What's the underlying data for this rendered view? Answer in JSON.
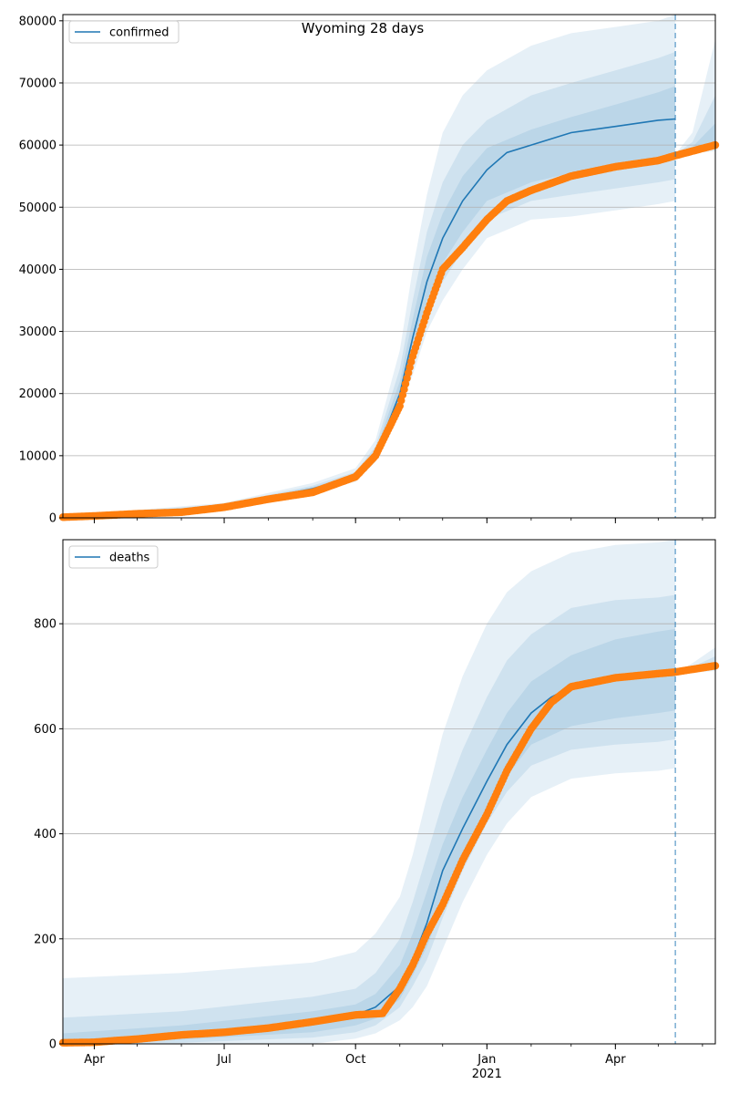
{
  "figure_title": "Wyoming 28 days",
  "colors": {
    "model": "#1f77b4",
    "observed": "#ff7f0e",
    "band": "#1f77b4",
    "grid": "#b0b0b0",
    "forecast_line": "#1f77b4"
  },
  "x_axis": {
    "start": "2020-03-10",
    "end": "2021-06-10",
    "forecast_start": "2021-05-13",
    "major_ticks": [
      {
        "date": "2020-04-01",
        "label": "Apr",
        "sublabel": ""
      },
      {
        "date": "2020-07-01",
        "label": "Jul",
        "sublabel": ""
      },
      {
        "date": "2020-10-01",
        "label": "Oct",
        "sublabel": ""
      },
      {
        "date": "2021-01-01",
        "label": "Jan",
        "sublabel": "2021"
      },
      {
        "date": "2021-04-01",
        "label": "Apr",
        "sublabel": ""
      }
    ]
  },
  "chart_data": [
    {
      "type": "line",
      "legend": "confirmed",
      "legend_position": "top-left",
      "grid": "horizontal",
      "ylim": [
        0,
        81000
      ],
      "yticks": [
        0,
        10000,
        20000,
        30000,
        40000,
        50000,
        60000,
        70000,
        80000
      ],
      "ytick_labels": [
        "0",
        "10000",
        "20000",
        "30000",
        "40000",
        "50000",
        "60000",
        "70000",
        "80000"
      ],
      "model": {
        "x": [
          "2020-03-10",
          "2020-04-01",
          "2020-05-01",
          "2020-06-01",
          "2020-07-01",
          "2020-08-01",
          "2020-09-01",
          "2020-10-01",
          "2020-10-15",
          "2020-11-01",
          "2020-11-10",
          "2020-11-20",
          "2020-12-01",
          "2020-12-15",
          "2021-01-01",
          "2021-01-15",
          "2021-02-01",
          "2021-03-01",
          "2021-04-01",
          "2021-05-01",
          "2021-05-13"
        ],
        "y": [
          100,
          350,
          800,
          1000,
          1900,
          3300,
          4700,
          6700,
          10000,
          20000,
          29000,
          38000,
          45000,
          51000,
          56000,
          58800,
          60000,
          62000,
          63000,
          64000,
          64200
        ]
      },
      "bands": [
        {
          "x": [
            "2020-03-10",
            "2020-07-01",
            "2020-09-01",
            "2020-10-01",
            "2020-10-15",
            "2020-11-01",
            "2020-11-10",
            "2020-11-20",
            "2020-12-01",
            "2020-12-15",
            "2021-01-01",
            "2021-02-01",
            "2021-03-01",
            "2021-04-01",
            "2021-05-01",
            "2021-05-13"
          ],
          "lower": [
            0,
            1500,
            4200,
            5800,
            9000,
            17500,
            23000,
            30000,
            35000,
            40000,
            45000,
            48000,
            48500,
            49500,
            50500,
            51000
          ],
          "upper": [
            300,
            2400,
            5600,
            8000,
            12500,
            27000,
            40000,
            52000,
            62000,
            68000,
            72000,
            76000,
            78000,
            79000,
            80000,
            81000
          ]
        },
        {
          "x": [
            "2020-03-10",
            "2020-07-01",
            "2020-09-01",
            "2020-10-01",
            "2020-10-15",
            "2020-11-01",
            "2020-11-10",
            "2020-11-20",
            "2020-12-01",
            "2020-12-15",
            "2021-01-01",
            "2021-02-01",
            "2021-03-01",
            "2021-04-01",
            "2021-05-01",
            "2021-05-13"
          ],
          "lower": [
            30,
            1600,
            4400,
            6200,
            9500,
            18500,
            25000,
            32000,
            38000,
            43000,
            48000,
            51000,
            52000,
            53000,
            54000,
            54500
          ],
          "upper": [
            200,
            2200,
            5200,
            7400,
            11500,
            24000,
            35000,
            46000,
            54000,
            60000,
            64000,
            68000,
            70000,
            72000,
            74000,
            75000
          ]
        },
        {
          "x": [
            "2020-03-10",
            "2020-07-01",
            "2020-09-01",
            "2020-10-01",
            "2020-10-15",
            "2020-11-01",
            "2020-11-10",
            "2020-11-20",
            "2020-12-01",
            "2020-12-15",
            "2021-01-01",
            "2021-02-01",
            "2021-03-01",
            "2021-04-01",
            "2021-05-01",
            "2021-05-13"
          ],
          "lower": [
            60,
            1750,
            4550,
            6450,
            9800,
            19300,
            27000,
            35000,
            41000,
            46000,
            51000,
            54000,
            55500,
            56500,
            57500,
            58000
          ],
          "upper": [
            150,
            2050,
            4950,
            7000,
            10800,
            22000,
            32000,
            42000,
            49000,
            55000,
            59500,
            62500,
            64500,
            66500,
            68500,
            69500
          ]
        }
      ],
      "forecast_bands": [
        {
          "x": [
            "2021-05-13",
            "2021-05-25",
            "2021-06-10"
          ],
          "lower": [
            58500,
            58700,
            59000
          ],
          "upper": [
            58500,
            62000,
            77000
          ]
        },
        {
          "x": [
            "2021-05-13",
            "2021-05-25",
            "2021-06-10"
          ],
          "lower": [
            58500,
            58900,
            59500
          ],
          "upper": [
            58500,
            60500,
            68000
          ]
        },
        {
          "x": [
            "2021-05-13",
            "2021-05-25",
            "2021-06-10"
          ],
          "lower": [
            58500,
            59100,
            59900
          ],
          "upper": [
            58500,
            59700,
            63500
          ]
        }
      ],
      "observed": {
        "x": [
          "2020-03-10",
          "2020-04-01",
          "2020-05-01",
          "2020-06-01",
          "2020-07-01",
          "2020-08-01",
          "2020-09-01",
          "2020-10-01",
          "2020-10-15",
          "2020-11-01",
          "2020-11-10",
          "2020-11-20",
          "2020-12-01",
          "2020-12-15",
          "2021-01-01",
          "2021-01-15",
          "2021-02-01",
          "2021-03-01",
          "2021-04-01",
          "2021-05-01",
          "2021-05-13",
          "2021-06-10"
        ],
        "y": [
          100,
          300,
          650,
          900,
          1700,
          3000,
          4100,
          6600,
          10000,
          18000,
          26000,
          33000,
          40000,
          43500,
          48000,
          51000,
          52700,
          55000,
          56500,
          57500,
          58300,
          60000
        ]
      }
    },
    {
      "type": "line",
      "legend": "deaths",
      "legend_position": "top-left",
      "grid": "horizontal",
      "ylim": [
        0,
        960
      ],
      "yticks": [
        0,
        200,
        400,
        600,
        800
      ],
      "ytick_labels": [
        "0",
        "200",
        "400",
        "600",
        "800"
      ],
      "model": {
        "x": [
          "2020-03-10",
          "2020-04-01",
          "2020-05-01",
          "2020-06-01",
          "2020-07-01",
          "2020-08-01",
          "2020-09-01",
          "2020-10-01",
          "2020-10-15",
          "2020-11-01",
          "2020-11-10",
          "2020-11-20",
          "2020-12-01",
          "2020-12-15",
          "2021-01-01",
          "2021-01-15",
          "2021-02-01",
          "2021-02-15",
          "2021-03-01",
          "2021-04-01",
          "2021-05-01",
          "2021-05-13"
        ],
        "y": [
          2,
          4,
          10,
          17,
          24,
          33,
          45,
          55,
          70,
          110,
          160,
          230,
          330,
          410,
          500,
          570,
          630,
          660,
          680,
          695,
          700,
          702
        ]
      },
      "bands": [
        {
          "x": [
            "2020-03-10",
            "2020-06-01",
            "2020-09-01",
            "2020-10-01",
            "2020-10-15",
            "2020-11-01",
            "2020-11-10",
            "2020-11-20",
            "2020-12-01",
            "2020-12-15",
            "2021-01-01",
            "2021-01-15",
            "2021-02-01",
            "2021-03-01",
            "2021-04-01",
            "2021-05-01",
            "2021-05-13"
          ],
          "lower": [
            0,
            0,
            0,
            10,
            20,
            45,
            70,
            110,
            180,
            270,
            360,
            420,
            470,
            505,
            515,
            520,
            525
          ],
          "upper": [
            125,
            135,
            155,
            175,
            210,
            280,
            360,
            470,
            590,
            700,
            800,
            860,
            900,
            935,
            950,
            955,
            960
          ]
        },
        {
          "x": [
            "2020-03-10",
            "2020-06-01",
            "2020-09-01",
            "2020-10-01",
            "2020-10-15",
            "2020-11-01",
            "2020-11-10",
            "2020-11-20",
            "2020-12-01",
            "2020-12-15",
            "2021-01-01",
            "2021-01-15",
            "2021-02-01",
            "2021-03-01",
            "2021-04-01",
            "2021-05-01",
            "2021-05-13"
          ],
          "lower": [
            0,
            2,
            12,
            22,
            35,
            70,
            110,
            160,
            240,
            330,
            420,
            480,
            530,
            560,
            570,
            575,
            580
          ],
          "upper": [
            50,
            62,
            90,
            105,
            135,
            200,
            270,
            360,
            460,
            560,
            660,
            730,
            780,
            830,
            845,
            850,
            855
          ]
        },
        {
          "x": [
            "2020-03-10",
            "2020-06-01",
            "2020-09-01",
            "2020-10-01",
            "2020-10-15",
            "2020-11-01",
            "2020-11-10",
            "2020-11-20",
            "2020-12-01",
            "2020-12-15",
            "2021-01-01",
            "2021-01-15",
            "2021-02-01",
            "2021-03-01",
            "2021-04-01",
            "2021-05-01",
            "2021-05-13"
          ],
          "lower": [
            0,
            8,
            22,
            35,
            48,
            85,
            130,
            185,
            265,
            355,
            440,
            510,
            570,
            605,
            620,
            630,
            635
          ],
          "upper": [
            20,
            35,
            62,
            75,
            95,
            150,
            210,
            290,
            380,
            470,
            560,
            630,
            690,
            740,
            770,
            785,
            790
          ]
        }
      ],
      "forecast_bands": [
        {
          "x": [
            "2021-05-13",
            "2021-05-25",
            "2021-06-10"
          ],
          "lower": [
            705,
            707,
            710
          ],
          "upper": [
            705,
            725,
            755
          ]
        },
        {
          "x": [
            "2021-05-13",
            "2021-05-25",
            "2021-06-10"
          ],
          "lower": [
            705,
            708,
            712
          ],
          "upper": [
            705,
            718,
            738
          ]
        },
        {
          "x": [
            "2021-05-13",
            "2021-05-25",
            "2021-06-10"
          ],
          "lower": [
            705,
            709,
            714
          ],
          "upper": [
            705,
            713,
            726
          ]
        }
      ],
      "observed": {
        "x": [
          "2020-03-10",
          "2020-04-01",
          "2020-04-15",
          "2020-05-01",
          "2020-06-01",
          "2020-07-01",
          "2020-08-01",
          "2020-09-01",
          "2020-10-01",
          "2020-10-20",
          "2020-11-01",
          "2020-11-10",
          "2020-11-20",
          "2020-12-01",
          "2020-12-15",
          "2021-01-01",
          "2021-01-15",
          "2021-02-01",
          "2021-02-15",
          "2021-03-01",
          "2021-04-01",
          "2021-05-01",
          "2021-05-13",
          "2021-06-10"
        ],
        "y": [
          2,
          3,
          6,
          9,
          17,
          22,
          30,
          42,
          55,
          58,
          105,
          150,
          210,
          265,
          350,
          437,
          520,
          600,
          650,
          680,
          697,
          705,
          708,
          720
        ]
      }
    }
  ]
}
